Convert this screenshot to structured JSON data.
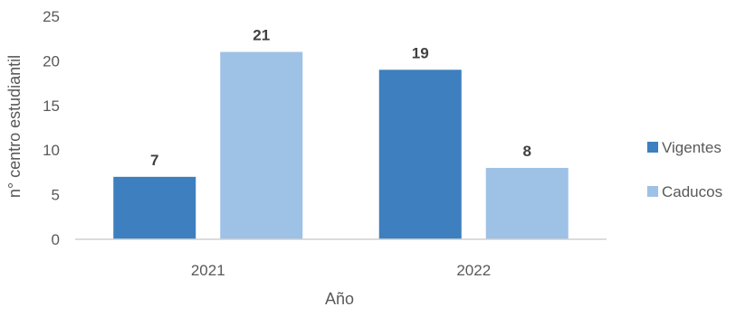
{
  "chart_data": {
    "type": "bar",
    "title": "",
    "xlabel": "Año",
    "ylabel": "n° centro estudiantil",
    "categories": [
      "2021",
      "2022"
    ],
    "series": [
      {
        "name": "Vigentes",
        "values": [
          7,
          19
        ],
        "color": "#3d7fbf"
      },
      {
        "name": "Caducos",
        "values": [
          21,
          8
        ],
        "color": "#9ec1e6"
      }
    ],
    "ylim": [
      0,
      25
    ],
    "yticks": [
      0,
      5,
      10,
      15,
      20,
      25
    ],
    "grid": false,
    "legend_position": "right",
    "data_labels": true
  }
}
